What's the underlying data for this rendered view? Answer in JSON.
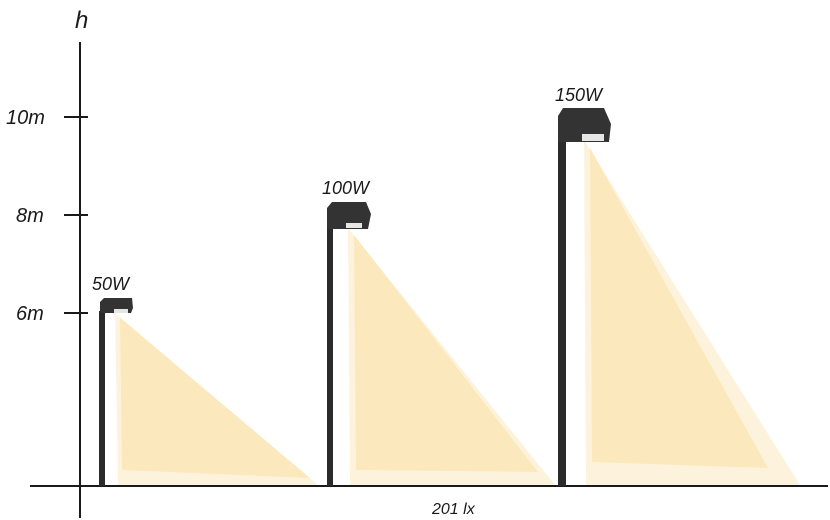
{
  "axis": {
    "y_label": "h",
    "ticks": [
      {
        "label": "10m",
        "value": 10
      },
      {
        "label": "8m",
        "value": 8
      },
      {
        "label": "6m",
        "value": 6
      }
    ],
    "footer_label": "201 lx"
  },
  "lamps": [
    {
      "power_label": "50W",
      "height_m": 6
    },
    {
      "power_label": "100W",
      "height_m": 8
    },
    {
      "power_label": "150W",
      "height_m": 10
    }
  ],
  "colors": {
    "light_outer": "#fdf3dc",
    "light_inner": "#fbe8bc",
    "pole": "#2b2b2b",
    "axis": "#1a1a1a"
  }
}
